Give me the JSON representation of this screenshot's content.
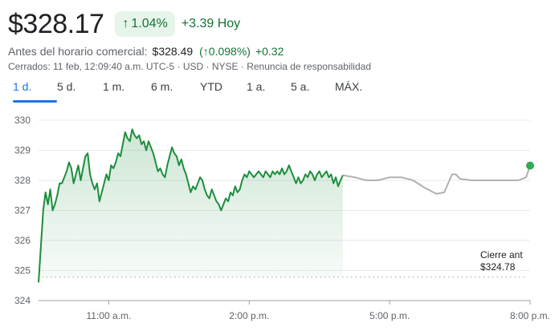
{
  "header": {
    "price": "$328.17",
    "pct_arrow": "↑",
    "pct_change": "1.04%",
    "change_today": "+3.39 Hoy"
  },
  "premarket": {
    "label": "Antes del horario comercial:",
    "price": "$328.49",
    "pct": "(↑0.098%)",
    "change": "+0.32"
  },
  "meta": {
    "status": "Cerrados: 11 feb, 12:09:40 a.m. UTC-5 · USD · NYSE · ",
    "disclaimer": "Renuncia de responsabilidad"
  },
  "tabs": [
    {
      "label": "1 d.",
      "active": true
    },
    {
      "label": "5 d.",
      "active": false
    },
    {
      "label": "1 m.",
      "active": false
    },
    {
      "label": "6 m.",
      "active": false
    },
    {
      "label": "YTD",
      "active": false
    },
    {
      "label": "1 a.",
      "active": false
    },
    {
      "label": "5 a.",
      "active": false
    },
    {
      "label": "MÁX.",
      "active": false
    }
  ],
  "colors": {
    "up": "#1e8e3e",
    "up_text": "#137333",
    "after_hours": "#b0b0b0",
    "grid": "#e8eaed",
    "accent": "#1a73e8"
  },
  "chart_data": {
    "type": "line",
    "y_ticks": [
      "330",
      "329",
      "328",
      "327",
      "326",
      "325",
      "324"
    ],
    "x_ticks": [
      "11:00 a.m.",
      "2:00 p.m.",
      "5:00 p.m.",
      "8:00 p.m."
    ],
    "ylim": [
      324,
      330
    ],
    "grid": true,
    "previous_close": {
      "label": "Cierre ant",
      "value": 324.78,
      "value_label": "$324.78"
    },
    "series": [
      {
        "session": "regular",
        "x": [
          "9:30",
          "9:33",
          "9:36",
          "9:39",
          "9:42",
          "9:45",
          "9:48",
          "9:51",
          "9:54",
          "9:57",
          "10:00",
          "10:03",
          "10:06",
          "10:09",
          "10:12",
          "10:15",
          "10:18",
          "10:21",
          "10:24",
          "10:27",
          "10:30",
          "10:33",
          "10:36",
          "10:39",
          "10:42",
          "10:45",
          "10:48",
          "10:51",
          "10:54",
          "10:57",
          "11:00",
          "11:03",
          "11:06",
          "11:09",
          "11:12",
          "11:15",
          "11:18",
          "11:21",
          "11:24",
          "11:27",
          "11:30",
          "11:33",
          "11:36",
          "11:39",
          "11:42",
          "11:45",
          "11:48",
          "11:51",
          "11:54",
          "11:57",
          "12:00",
          "12:03",
          "12:06",
          "12:09",
          "12:12",
          "12:15",
          "12:18",
          "12:21",
          "12:24",
          "12:27",
          "12:30",
          "12:33",
          "12:36",
          "12:39",
          "12:42",
          "12:45",
          "12:48",
          "12:51",
          "12:54",
          "12:57",
          "13:00",
          "13:03",
          "13:06",
          "13:09",
          "13:12",
          "13:15",
          "13:18",
          "13:21",
          "13:24",
          "13:27",
          "13:30",
          "13:33",
          "13:36",
          "13:39",
          "13:42",
          "13:45",
          "13:48",
          "13:51",
          "13:54",
          "13:57",
          "14:00",
          "14:03",
          "14:06",
          "14:09",
          "14:12",
          "14:15",
          "14:18",
          "14:21",
          "14:24",
          "14:27",
          "14:30",
          "14:33",
          "14:36",
          "14:39",
          "14:42",
          "14:45",
          "14:48",
          "14:51",
          "14:54",
          "14:57",
          "15:00",
          "15:03",
          "15:06",
          "15:09",
          "15:12",
          "15:15",
          "15:18",
          "15:21",
          "15:24",
          "15:27",
          "15:30",
          "15:33",
          "15:36",
          "15:39",
          "15:42",
          "15:45",
          "15:48",
          "15:51",
          "15:54",
          "15:57",
          "16:00"
        ],
        "values": [
          324.6,
          325.8,
          327.0,
          327.6,
          327.2,
          327.7,
          327.0,
          327.2,
          327.5,
          327.9,
          327.9,
          328.1,
          328.3,
          328.6,
          328.4,
          327.9,
          328.2,
          328.5,
          328.0,
          328.4,
          328.8,
          328.9,
          328.2,
          327.9,
          327.7,
          327.9,
          327.3,
          327.6,
          327.9,
          328.2,
          328.0,
          328.5,
          328.4,
          328.6,
          328.9,
          328.8,
          329.2,
          329.6,
          329.4,
          329.3,
          329.7,
          329.5,
          329.4,
          329.5,
          329.2,
          329.3,
          329.0,
          329.3,
          329.1,
          328.9,
          328.6,
          328.3,
          328.4,
          328.2,
          328.1,
          328.5,
          328.8,
          329.1,
          328.9,
          328.8,
          328.5,
          328.7,
          328.4,
          328.2,
          327.9,
          327.6,
          327.8,
          327.7,
          327.9,
          328.1,
          328.0,
          327.7,
          327.5,
          327.4,
          327.7,
          327.5,
          327.3,
          327.2,
          327.0,
          327.2,
          327.4,
          327.3,
          327.6,
          327.5,
          327.8,
          327.6,
          327.7,
          328.0,
          328.2,
          328.1,
          328.3,
          328.2,
          328.1,
          328.2,
          328.3,
          328.2,
          328.1,
          328.3,
          328.2,
          328.1,
          328.3,
          328.2,
          328.3,
          328.2,
          328.4,
          328.2,
          328.3,
          328.5,
          328.3,
          328.1,
          327.9,
          328.1,
          327.9,
          328.0,
          328.2,
          328.1,
          328.3,
          328.2,
          328.0,
          328.2,
          328.3,
          328.1,
          328.2,
          328.3,
          328.1,
          328.2,
          327.9,
          328.1,
          327.8,
          328.0,
          328.17
        ]
      },
      {
        "session": "after_hours",
        "x": [
          "16:00",
          "16:15",
          "16:30",
          "16:45",
          "17:00",
          "17:15",
          "17:30",
          "17:45",
          "18:00",
          "18:10",
          "18:20",
          "18:25",
          "18:30",
          "18:45",
          "19:00",
          "19:15",
          "19:30",
          "19:45",
          "19:55",
          "20:00"
        ],
        "values": [
          328.17,
          328.1,
          328.0,
          328.0,
          328.1,
          328.1,
          328.0,
          327.75,
          327.55,
          327.6,
          328.2,
          328.2,
          328.05,
          328.0,
          328.0,
          328.0,
          328.0,
          328.0,
          328.1,
          328.49
        ]
      }
    ]
  }
}
